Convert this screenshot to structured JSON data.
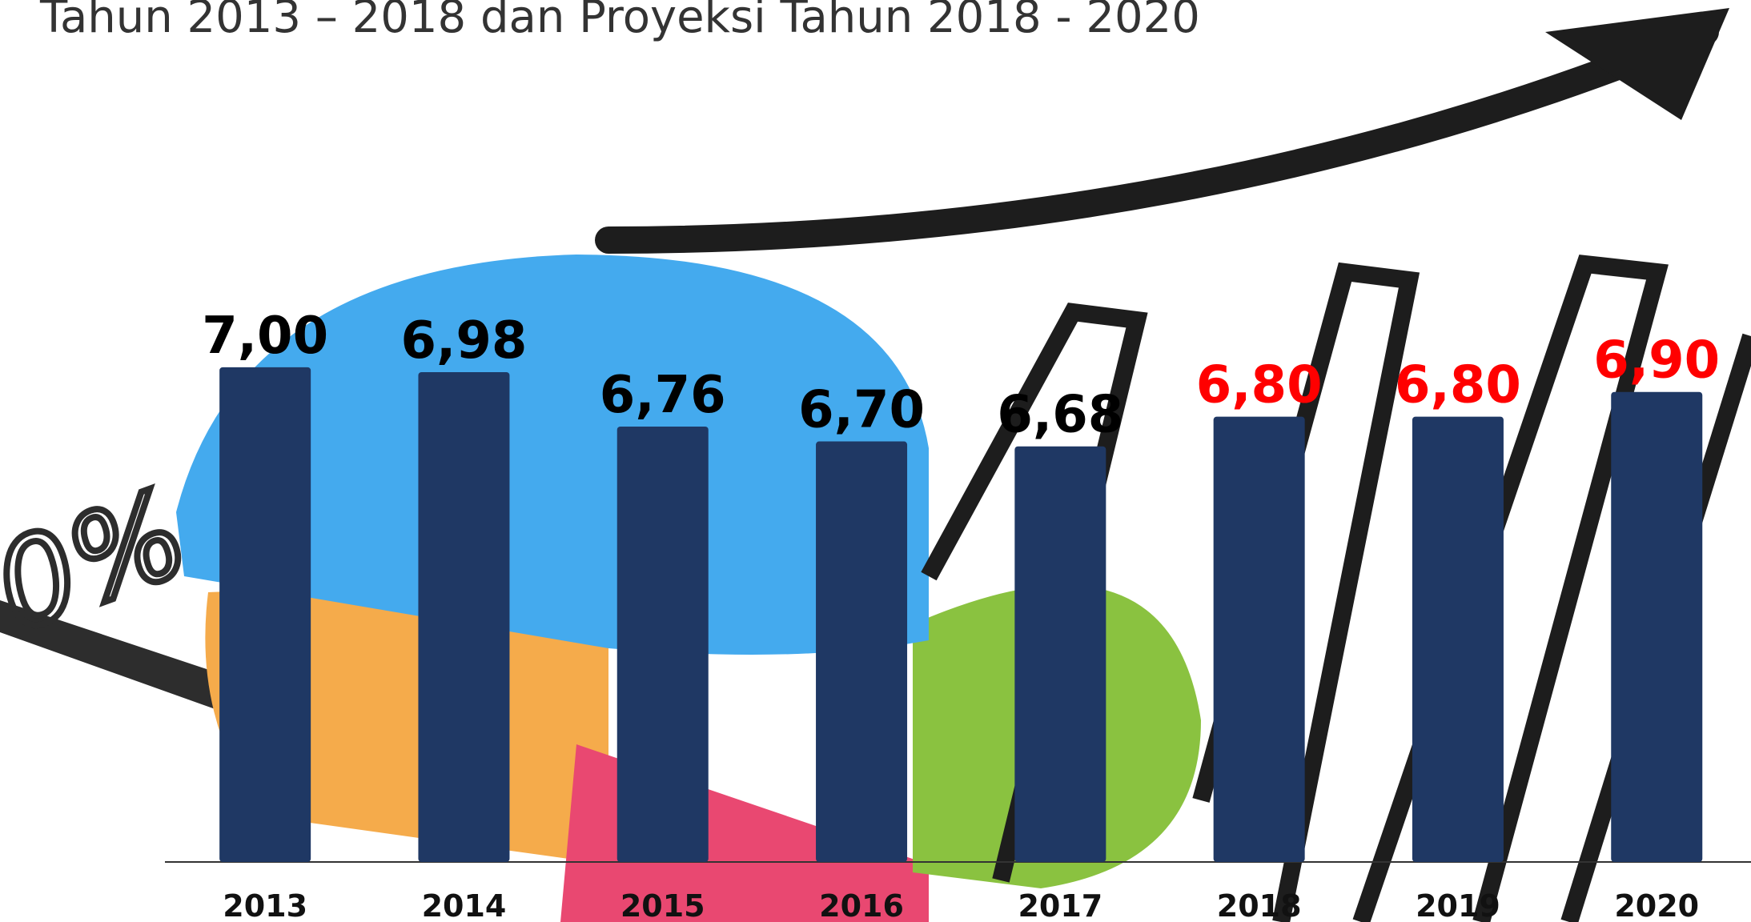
{
  "chart_data": {
    "type": "bar",
    "title": "Tahun 2013 – 2018 dan Proyeksi Tahun 2018 - 2020",
    "categories": [
      "2013",
      "2014",
      "2015",
      "2016",
      "2017",
      "2018",
      "2019",
      "2020"
    ],
    "values": [
      7.0,
      6.98,
      6.76,
      6.7,
      6.68,
      6.8,
      6.8,
      6.9
    ],
    "value_labels": [
      "7,00",
      "6,98",
      "6,76",
      "6,70",
      "6,68",
      "6,80",
      "6,80",
      "6,90"
    ],
    "value_label_colors": [
      "#000000",
      "#000000",
      "#000000",
      "#000000",
      "#000000",
      "#ff0000",
      "#ff0000",
      "#ff0000"
    ],
    "color": "#1f3864",
    "ylim": [
      5,
      7.2
    ]
  }
}
